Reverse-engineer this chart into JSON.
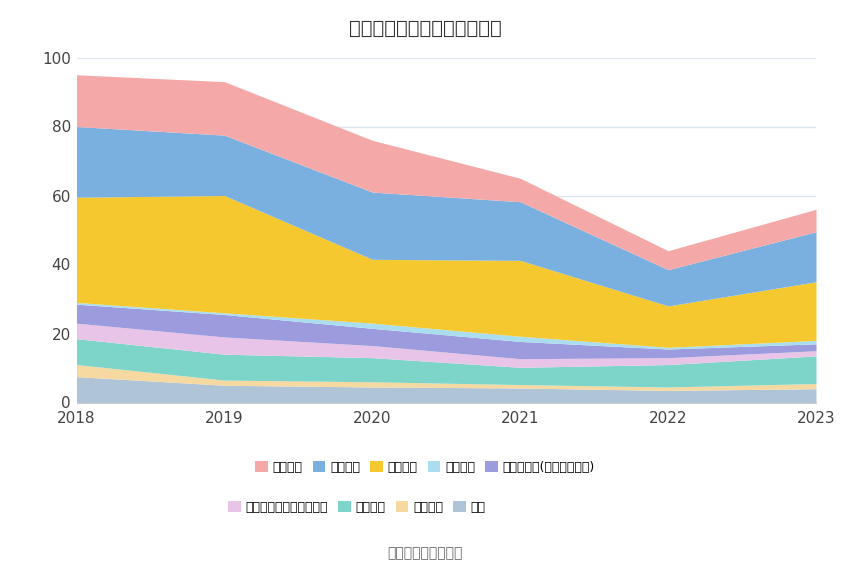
{
  "title": "历年主要负债堆积图（亿元）",
  "years": [
    2018,
    2019,
    2020,
    2021,
    2022,
    2023
  ],
  "series": [
    {
      "name": "其它",
      "color": "#b0c4d8",
      "values": [
        7.5,
        5.0,
        4.5,
        4.2,
        3.5,
        4.0
      ]
    },
    {
      "name": "预计负债",
      "color": "#f5d9a0",
      "values": [
        3.5,
        1.5,
        1.5,
        1.0,
        1.0,
        1.5
      ]
    },
    {
      "name": "长期借款",
      "color": "#7dd4c8",
      "values": [
        7.5,
        7.5,
        7.0,
        5.0,
        6.5,
        8.0
      ]
    },
    {
      "name": "一年内到期的非流动负债",
      "color": "#e8c4e8",
      "values": [
        4.5,
        5.0,
        3.5,
        2.5,
        2.0,
        1.5
      ]
    },
    {
      "name": "其他应付款(含利息和股利)",
      "color": "#9b9bdd",
      "values": [
        5.5,
        6.5,
        5.0,
        5.0,
        2.5,
        2.0
      ]
    },
    {
      "name": "合同负债",
      "color": "#aadeee",
      "values": [
        0.5,
        0.5,
        1.5,
        1.5,
        0.5,
        1.0
      ]
    },
    {
      "name": "应付账款",
      "color": "#f5c830",
      "values": [
        30.5,
        34.0,
        18.5,
        22.0,
        12.0,
        17.0
      ]
    },
    {
      "name": "应付票据",
      "color": "#7ab0e0",
      "values": [
        20.5,
        17.5,
        19.5,
        17.0,
        10.5,
        14.5
      ]
    },
    {
      "name": "短期借款",
      "color": "#f5a8a8",
      "values": [
        15.0,
        15.5,
        15.0,
        6.8,
        5.5,
        6.5
      ]
    }
  ],
  "ylim": [
    0,
    100
  ],
  "yticks": [
    0,
    20,
    40,
    60,
    80,
    100
  ],
  "source_text": "数据来源：恒生聚源",
  "background_color": "#ffffff",
  "grid_color": "#dde5f0",
  "legend_order": [
    8,
    7,
    6,
    5,
    4,
    3,
    2,
    1,
    0
  ]
}
